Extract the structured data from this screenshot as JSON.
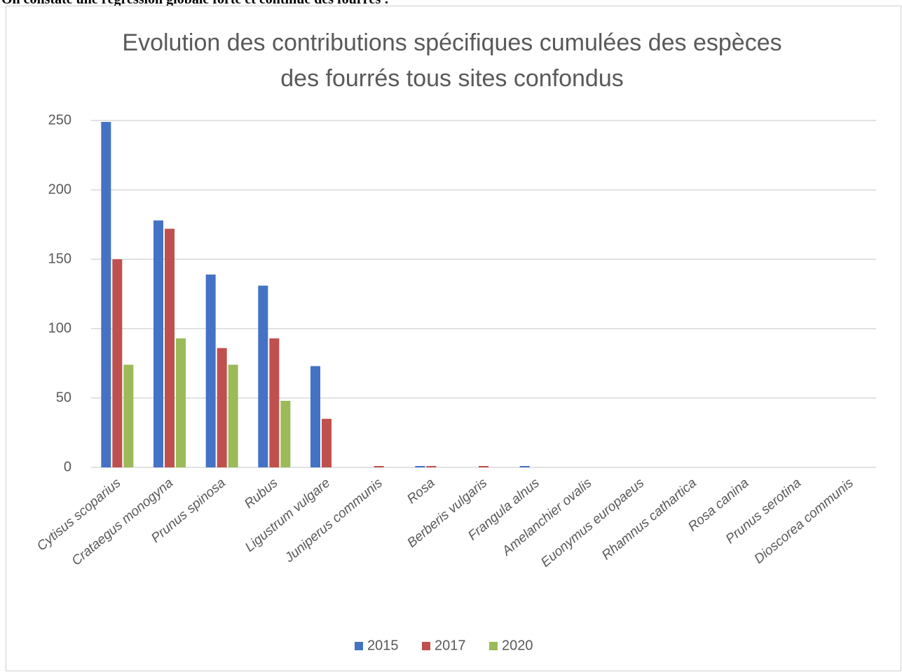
{
  "note": "On constate une régression globale forte et continue des fourrés :",
  "chart_data": {
    "type": "bar",
    "title": "Evolution des contributions spécifiques cumulées des espèces des fourrés tous sites confondus",
    "categories": [
      "Cytisus scoparius",
      "Crataegus monogyna",
      "Prunus spinosa",
      "Rubus",
      "Ligustrum vulgare",
      "Juniperus communis",
      "Rosa",
      "Berberis vulgaris",
      "Frangula alnus",
      "Amelanchier ovalis",
      "Euonymus europaeus",
      "Rhamnus cathartica",
      "Rosa canina",
      "Prunus serotina",
      "Dioscorea communis"
    ],
    "series": [
      {
        "name": "2015",
        "color": "#4472c4",
        "values": [
          249,
          178,
          139,
          131,
          73,
          0,
          1,
          0,
          1,
          0,
          0,
          0,
          0,
          0,
          0
        ]
      },
      {
        "name": "2017",
        "color": "#c0504d",
        "values": [
          150,
          172,
          86,
          93,
          35,
          1,
          1,
          1,
          0,
          0,
          0,
          0,
          0,
          0,
          0
        ]
      },
      {
        "name": "2020",
        "color": "#9bbb59",
        "values": [
          74,
          93,
          74,
          48,
          0,
          0,
          0,
          0,
          0,
          0,
          0,
          0,
          0,
          0,
          0
        ]
      }
    ],
    "ylim": [
      0,
      250
    ],
    "yticks": [
      0,
      50,
      100,
      150,
      200,
      250
    ],
    "grid": true,
    "legend": "bottom"
  }
}
